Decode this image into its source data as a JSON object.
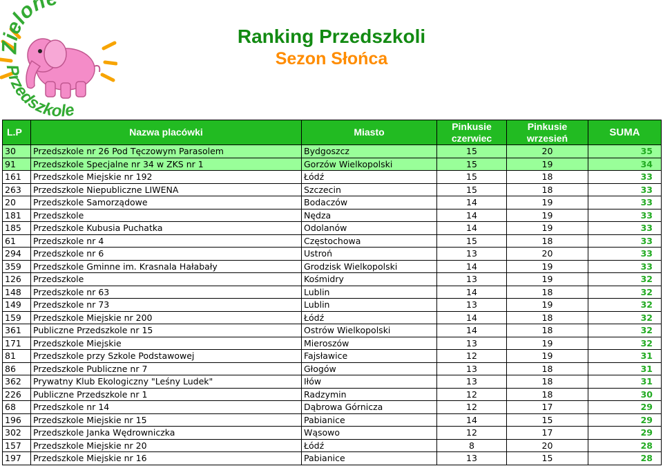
{
  "logo": {
    "word1": "Zielone",
    "word2": "Przedszkole",
    "colors": {
      "green": "#33aa33",
      "pink": "#f48cc8",
      "orange": "#f7a400"
    }
  },
  "header": {
    "title": "Ranking Przedszkoli",
    "subtitle": "Sezon Słońca"
  },
  "table": {
    "columns": {
      "lp": "L.P",
      "name": "Nazwa placówki",
      "city": "Miasto",
      "june": "Pinkusie czerwiec",
      "sept": "Pinkusie wrzesień",
      "sum": "SUMA"
    },
    "rows": [
      {
        "lp": "30",
        "name": "Przedszkole nr 26 Pod Tęczowym Parasolem",
        "city": "Bydgoszcz",
        "june": "15",
        "sept": "20",
        "sum": "35",
        "highlight": true
      },
      {
        "lp": "91",
        "name": "Przedszkole Specjalne nr 34 w ZKS nr 1",
        "city": "Gorzów Wielkopolski",
        "june": "15",
        "sept": "19",
        "sum": "34",
        "highlight": true
      },
      {
        "lp": "161",
        "name": "Przedszkole Miejskie nr 192",
        "city": "Łódź",
        "june": "15",
        "sept": "18",
        "sum": "33",
        "highlight": false
      },
      {
        "lp": "263",
        "name": "Przedszkole Niepubliczne LIWENA",
        "city": "Szczecin",
        "june": "15",
        "sept": "18",
        "sum": "33",
        "highlight": false
      },
      {
        "lp": "20",
        "name": "Przedszkole Samorządowe",
        "city": "Bodaczów",
        "june": "14",
        "sept": "19",
        "sum": "33",
        "highlight": false
      },
      {
        "lp": "181",
        "name": "Przedszkole",
        "city": "Nędza",
        "june": "14",
        "sept": "19",
        "sum": "33",
        "highlight": false
      },
      {
        "lp": "185",
        "name": "Przedszkole Kubusia Puchatka",
        "city": "Odolanów",
        "june": "14",
        "sept": "19",
        "sum": "33",
        "highlight": false
      },
      {
        "lp": "61",
        "name": "Przedszkole nr 4",
        "city": "Częstochowa",
        "june": "15",
        "sept": "18",
        "sum": "33",
        "highlight": false
      },
      {
        "lp": "294",
        "name": "Przedszkole nr 6",
        "city": "Ustroń",
        "june": "13",
        "sept": "20",
        "sum": "33",
        "highlight": false
      },
      {
        "lp": "359",
        "name": "Przedszkole Gminne im. Krasnala Hałabały",
        "city": "Grodzisk Wielkopolski",
        "june": "14",
        "sept": "19",
        "sum": "33",
        "highlight": false
      },
      {
        "lp": "126",
        "name": "Przedszkole",
        "city": "Kośmidry",
        "june": "13",
        "sept": "19",
        "sum": "32",
        "highlight": false
      },
      {
        "lp": "148",
        "name": "Przedszkole nr 63",
        "city": "Lublin",
        "june": "14",
        "sept": "18",
        "sum": "32",
        "highlight": false
      },
      {
        "lp": "149",
        "name": "Przedszkole nr 73",
        "city": "Lublin",
        "june": "13",
        "sept": "19",
        "sum": "32",
        "highlight": false
      },
      {
        "lp": "159",
        "name": "Przedszkole Miejskie nr 200",
        "city": "Łódź",
        "june": "14",
        "sept": "18",
        "sum": "32",
        "highlight": false
      },
      {
        "lp": "361",
        "name": "Publiczne Przedszkole nr 15",
        "city": "Ostrów Wielkopolski",
        "june": "14",
        "sept": "18",
        "sum": "32",
        "highlight": false
      },
      {
        "lp": "171",
        "name": "Przedszkole Miejskie",
        "city": "Mieroszów",
        "june": "13",
        "sept": "19",
        "sum": "32",
        "highlight": false
      },
      {
        "lp": "81",
        "name": "Przedszkole przy Szkole Podstawowej",
        "city": "Fajsławice",
        "june": "12",
        "sept": "19",
        "sum": "31",
        "highlight": false
      },
      {
        "lp": "86",
        "name": "Przedszkole Publiczne nr 7",
        "city": "Głogów",
        "june": "13",
        "sept": "18",
        "sum": "31",
        "highlight": false
      },
      {
        "lp": "362",
        "name": "Prywatny Klub Ekologiczny \"Leśny Ludek\"",
        "city": "Iłów",
        "june": "13",
        "sept": "18",
        "sum": "31",
        "highlight": false
      },
      {
        "lp": "226",
        "name": "Publiczne Przedszkole nr 1",
        "city": "Radzymin",
        "june": "12",
        "sept": "18",
        "sum": "30",
        "highlight": false
      },
      {
        "lp": "68",
        "name": "Przedszkole nr 14",
        "city": "Dąbrowa Górnicza",
        "june": "12",
        "sept": "17",
        "sum": "29",
        "highlight": false
      },
      {
        "lp": "196",
        "name": "Przedszkole Miejskie nr 15",
        "city": "Pabianice",
        "june": "14",
        "sept": "15",
        "sum": "29",
        "highlight": false
      },
      {
        "lp": "302",
        "name": "Przedszkole Janka Wędrowniczka",
        "city": "Wąsowo",
        "june": "12",
        "sept": "17",
        "sum": "29",
        "highlight": false
      },
      {
        "lp": "157",
        "name": "Przedszkole Miejskie nr 20",
        "city": "Łódź",
        "june": "8",
        "sept": "20",
        "sum": "28",
        "highlight": false
      },
      {
        "lp": "197",
        "name": "Przedszkole Miejskie nr 16",
        "city": "Pabianice",
        "june": "13",
        "sept": "15",
        "sum": "28",
        "highlight": false
      }
    ]
  }
}
